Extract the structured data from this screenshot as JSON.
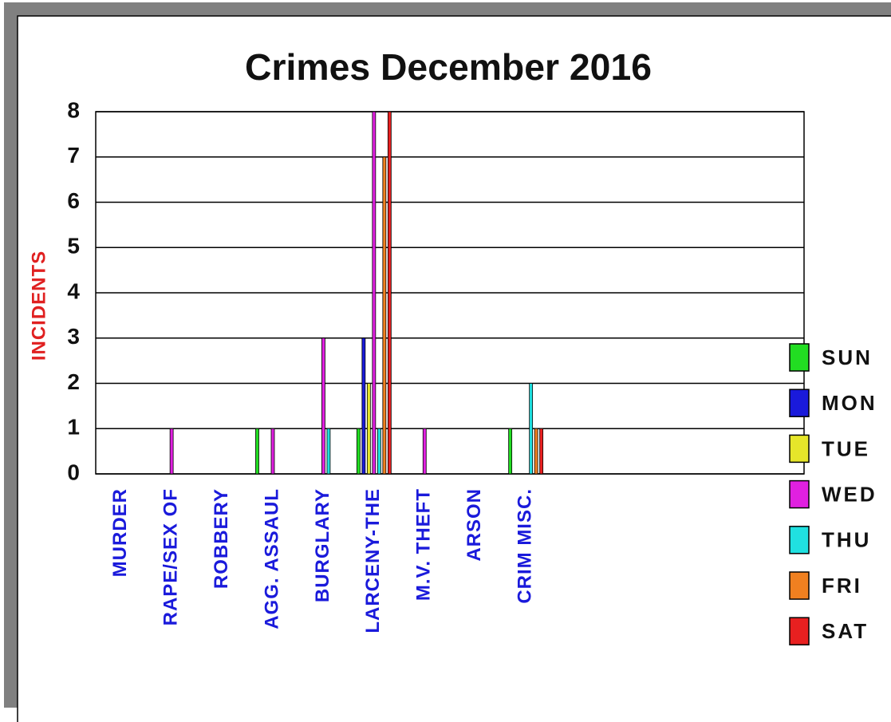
{
  "chart_data": {
    "type": "bar",
    "title": "Crimes December 2016",
    "y_label": "INCIDENTS",
    "categories": [
      "MURDER",
      "RAPE/SEX OF",
      "ROBBERY",
      "AGG. ASSAUL",
      "BURGLARY",
      "LARCENY-THE",
      "M.V. THEFT",
      "ARSON",
      "CRIM MISC.",
      null,
      null,
      null,
      null,
      null
    ],
    "series": [
      {
        "name": "SUN",
        "color": "#22dd22",
        "values": [
          0,
          0,
          0,
          1,
          0,
          1,
          0,
          0,
          1,
          null,
          null,
          null,
          null,
          null
        ]
      },
      {
        "name": "MON",
        "color": "#1a1adb",
        "values": [
          0,
          0,
          0,
          0,
          0,
          3,
          0,
          0,
          0,
          null,
          null,
          null,
          null,
          null
        ]
      },
      {
        "name": "TUE",
        "color": "#e6e62a",
        "values": [
          0,
          0,
          0,
          0,
          0,
          2,
          0,
          0,
          0,
          null,
          null,
          null,
          null,
          null
        ]
      },
      {
        "name": "WED",
        "color": "#e020e0",
        "values": [
          0,
          1,
          0,
          1,
          3,
          8,
          1,
          0,
          0,
          null,
          null,
          null,
          null,
          null
        ]
      },
      {
        "name": "THU",
        "color": "#20e0e0",
        "values": [
          0,
          0,
          0,
          0,
          1,
          1,
          0,
          0,
          2,
          null,
          null,
          null,
          null,
          null
        ]
      },
      {
        "name": "FRI",
        "color": "#f08020",
        "values": [
          0,
          0,
          0,
          0,
          0,
          7,
          0,
          0,
          1,
          null,
          null,
          null,
          null,
          null
        ]
      },
      {
        "name": "SAT",
        "color": "#e82020",
        "values": [
          0,
          0,
          0,
          0,
          0,
          8,
          0,
          0,
          1,
          null,
          null,
          null,
          null,
          null
        ]
      }
    ],
    "ylim": [
      0,
      8
    ],
    "yticks": [
      0,
      1,
      2,
      3,
      4,
      5,
      6,
      7,
      8
    ],
    "grid": true,
    "legend": "right"
  }
}
